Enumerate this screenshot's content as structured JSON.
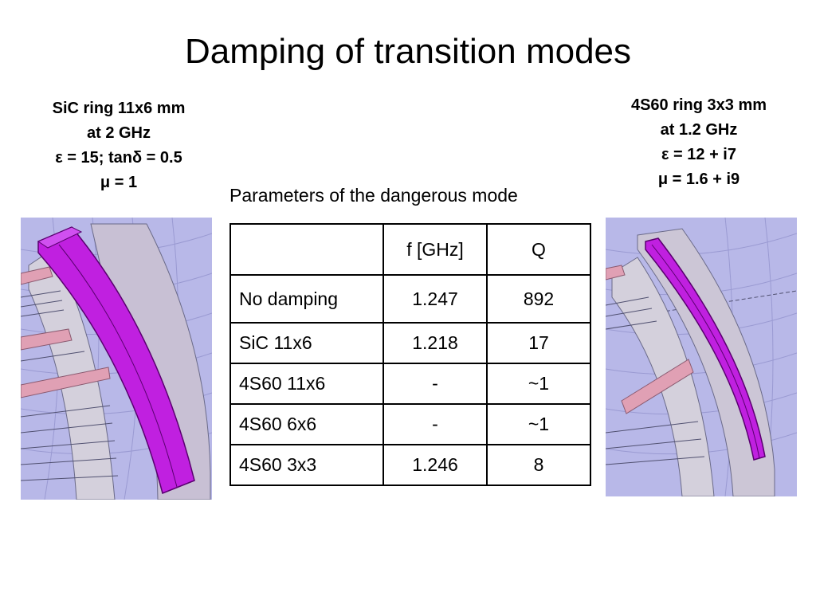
{
  "slide": {
    "title": "Damping of transition modes"
  },
  "left_spec": {
    "lines": [
      "SiC ring 11x6 mm",
      "at 2 GHz",
      "ε = 15; tanδ = 0.5",
      "μ = 1"
    ]
  },
  "right_spec": {
    "lines": [
      "4S60 ring 3x3 mm",
      "at 1.2 GHz",
      "ε = 12 + i7",
      "μ = 1.6 + i9"
    ]
  },
  "table": {
    "caption": "Parameters of the dangerous mode",
    "headers": [
      "",
      "f [GHz]",
      "Q"
    ],
    "rows": [
      [
        "No damping",
        "1.247",
        "892"
      ],
      [
        "SiC 11x6",
        "1.218",
        "17"
      ],
      [
        "4S60 11x6",
        "-",
        "~1"
      ],
      [
        "4S60 6x6",
        "-",
        "~1"
      ],
      [
        "4S60 3x3",
        "1.246",
        "8"
      ]
    ]
  },
  "colors": {
    "ring_magenta": "#c020e0",
    "background_lavender": "#b8b8e8",
    "strip_pink": "#e0a0b4"
  }
}
